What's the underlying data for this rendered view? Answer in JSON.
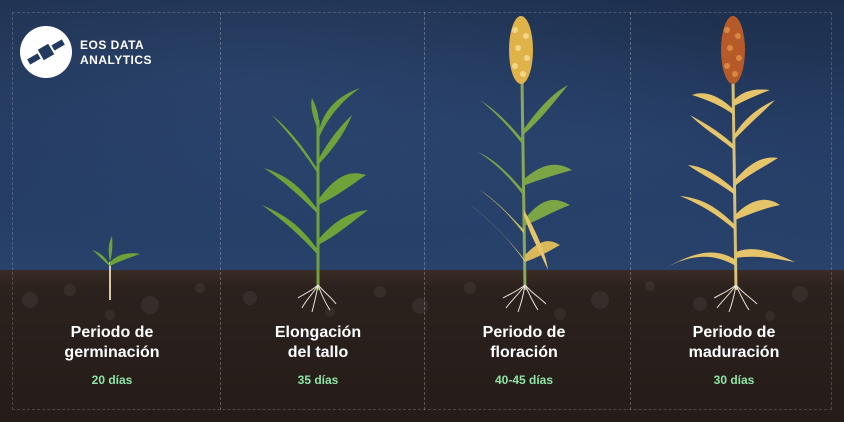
{
  "brand": {
    "line1": "EOS DATA",
    "line2": "ANALYTICS",
    "icon": "satellite-icon"
  },
  "stages": [
    {
      "title1": "Periodo de",
      "title2": "germinación",
      "duration": "20 días"
    },
    {
      "title1": "Elongación",
      "title2": "del tallo",
      "duration": "35 días"
    },
    {
      "title1": "Periodo de",
      "title2": "floración",
      "duration": "40-45 días"
    },
    {
      "title1": "Periodo de",
      "title2": "maduración",
      "duration": "30 días"
    }
  ],
  "colors": {
    "sky": "#233a60",
    "soil": "#251c19",
    "leaf_green": "#6fa33a",
    "leaf_yellow": "#e6c56a",
    "duration_text": "#8fe3a6",
    "grain_flower": "#e0b24a",
    "grain_mature": "#b65a2a"
  }
}
